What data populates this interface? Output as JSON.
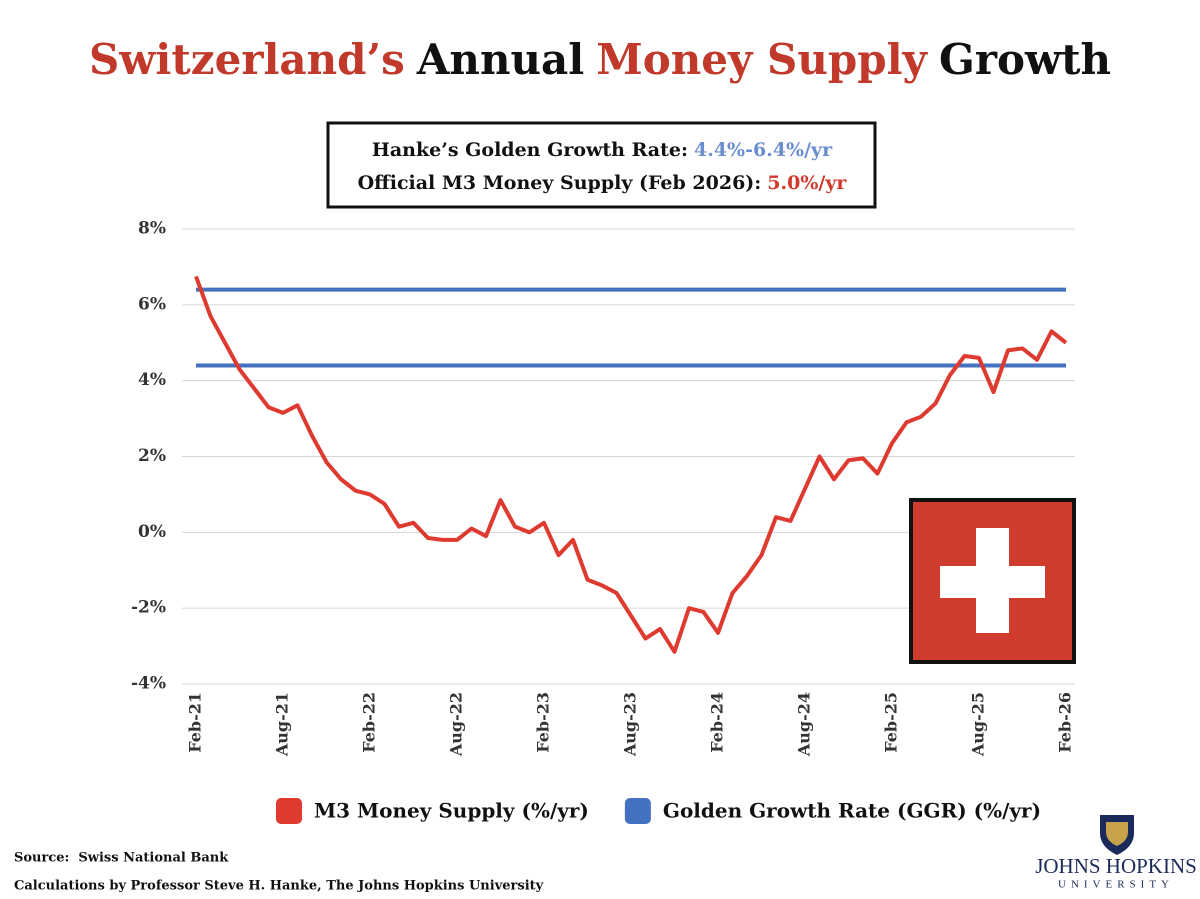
{
  "chart_data": {
    "type": "line",
    "title_parts": [
      {
        "text": "Switzerland’s",
        "color": "#c0392b"
      },
      {
        "text": "Annual",
        "color": "#111111"
      },
      {
        "text": "Money Supply",
        "color": "#c0392b"
      },
      {
        "text": "Growth",
        "color": "#111111"
      }
    ],
    "info_box": [
      [
        {
          "text": "Hanke’s Golden Growth Rate:",
          "color": "#111111"
        },
        {
          "text": "4.4%-6.4%/yr",
          "color": "#6a8dd0"
        }
      ],
      [
        {
          "text": "Official M3 Money Supply (Feb 2026):",
          "color": "#111111"
        },
        {
          "text": "5.0%/yr",
          "color": "#d0392b"
        }
      ]
    ],
    "categories": [
      "Feb-21",
      null,
      null,
      null,
      null,
      null,
      "Aug-21",
      null,
      null,
      null,
      null,
      null,
      "Feb-22",
      null,
      null,
      null,
      null,
      null,
      "Aug-22",
      null,
      null,
      null,
      null,
      null,
      "Feb-23",
      null,
      null,
      null,
      null,
      null,
      "Aug-23",
      null,
      null,
      null,
      null,
      null,
      "Feb-24",
      null,
      null,
      null,
      null,
      null,
      "Aug-24",
      null,
      null,
      null,
      null,
      null,
      "Feb-25",
      null,
      null,
      null,
      null,
      null,
      "Aug-25",
      null,
      null,
      null,
      null,
      null,
      "Feb-26"
    ],
    "ylim": [
      -4,
      8
    ],
    "yticks": [
      {
        "value": -4,
        "label": "-4%"
      },
      {
        "value": -2,
        "label": "-2%"
      },
      {
        "value": 0,
        "label": "0%"
      },
      {
        "value": 2,
        "label": "2%"
      },
      {
        "value": 4,
        "label": "4%"
      },
      {
        "value": 6,
        "label": "6%"
      },
      {
        "value": 8,
        "label": "8%"
      }
    ],
    "grid": true,
    "legend": "bottom",
    "series": [
      {
        "name": "M3 Money Supply (%/yr)",
        "color": "#de3a2f",
        "values": [
          6.75,
          5.7,
          5.0,
          4.3,
          3.8,
          3.3,
          3.15,
          3.35,
          2.55,
          1.85,
          1.4,
          1.1,
          1.0,
          0.75,
          0.15,
          0.25,
          -0.15,
          -0.2,
          -0.2,
          0.1,
          -0.1,
          0.85,
          0.15,
          0.0,
          0.25,
          -0.6,
          -0.2,
          -1.25,
          -1.4,
          -1.6,
          -2.2,
          -2.8,
          -2.55,
          -3.15,
          -2.0,
          -2.1,
          -2.65,
          -1.6,
          -1.15,
          -0.6,
          0.4,
          0.3,
          1.15,
          2.0,
          1.4,
          1.9,
          1.95,
          1.55,
          2.35,
          2.9,
          3.05,
          3.4,
          4.15,
          4.65,
          4.6,
          3.7,
          4.8,
          4.85,
          4.55,
          5.3,
          5.0
        ]
      }
    ],
    "reference_lines": {
      "name": "Golden Growth Rate (GGR) (%/yr)",
      "color": "#4472c0",
      "values": [
        4.4,
        6.4
      ]
    }
  },
  "footer": {
    "source": "Source:  Swiss National Bank",
    "calculations": "Calculations by Professor Steve H. Hanke, The Johns Hopkins University",
    "logo_name": "JOHNS HOPKINS",
    "logo_sub": "UNIVERSITY"
  }
}
